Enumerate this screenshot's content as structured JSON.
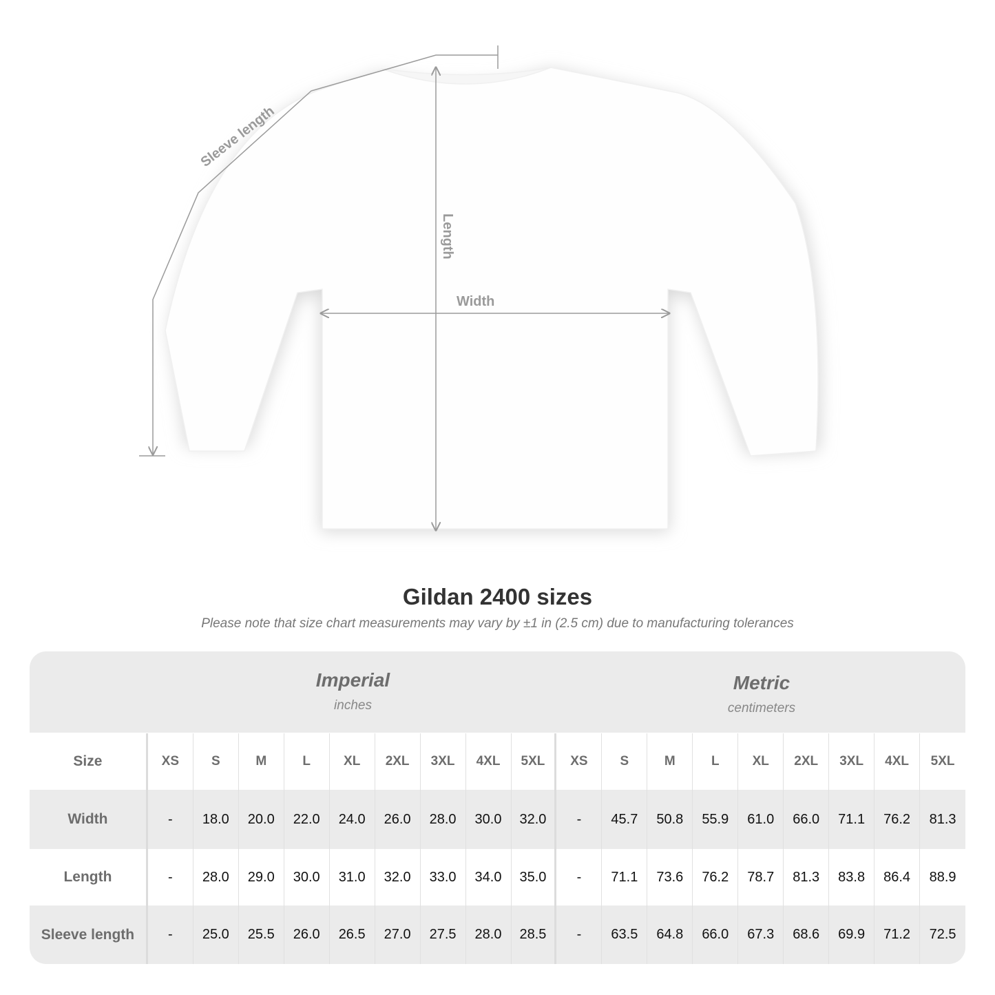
{
  "diagram": {
    "sleeve_label": "Sleeve length",
    "length_label": "Length",
    "width_label": "Width",
    "line_color": "#9a9a9a"
  },
  "title": "Gildan 2400 sizes",
  "note": "Please note that size chart measurements may vary by ±1 in (2.5 cm) due to manufacturing tolerances",
  "imperial": {
    "name": "Imperial",
    "unit": "inches"
  },
  "metric": {
    "name": "Metric",
    "unit": "centimeters"
  },
  "table": {
    "header_label": "Size",
    "sizes": [
      "XS",
      "S",
      "M",
      "L",
      "XL",
      "2XL",
      "3XL",
      "4XL",
      "5XL"
    ],
    "rows": [
      {
        "label": "Width",
        "imperial": [
          "-",
          "18.0",
          "20.0",
          "22.0",
          "24.0",
          "26.0",
          "28.0",
          "30.0",
          "32.0"
        ],
        "metric": [
          "-",
          "45.7",
          "50.8",
          "55.9",
          "61.0",
          "66.0",
          "71.1",
          "76.2",
          "81.3"
        ]
      },
      {
        "label": "Length",
        "imperial": [
          "-",
          "28.0",
          "29.0",
          "30.0",
          "31.0",
          "32.0",
          "33.0",
          "34.0",
          "35.0"
        ],
        "metric": [
          "-",
          "71.1",
          "73.6",
          "76.2",
          "78.7",
          "81.3",
          "83.8",
          "86.4",
          "88.9"
        ]
      },
      {
        "label": "Sleeve length",
        "imperial": [
          "-",
          "25.0",
          "25.5",
          "26.0",
          "26.5",
          "27.0",
          "27.5",
          "28.0",
          "28.5"
        ],
        "metric": [
          "-",
          "63.5",
          "64.8",
          "66.0",
          "67.3",
          "68.6",
          "69.9",
          "71.2",
          "72.5"
        ]
      }
    ]
  }
}
